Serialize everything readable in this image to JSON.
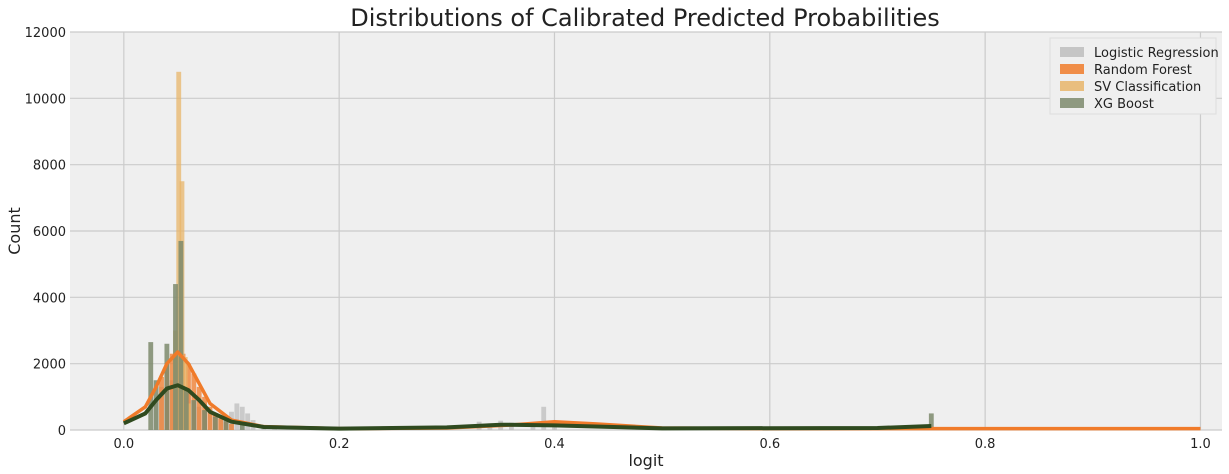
{
  "chart_data": {
    "type": "histogram",
    "title": "Distributions of Calibrated Predicted Probabilities",
    "xlabel": "logit",
    "ylabel": "Count",
    "xlim": [
      -0.05,
      1.02
    ],
    "ylim": [
      0,
      12000
    ],
    "xticks": [
      0.0,
      0.2,
      0.4,
      0.6,
      0.8,
      1.0
    ],
    "xtick_labels": [
      "0.0",
      "0.2",
      "0.4",
      "0.6",
      "0.8",
      "1.0"
    ],
    "yticks": [
      0,
      2000,
      4000,
      6000,
      8000,
      10000,
      12000
    ],
    "ytick_labels": [
      "0",
      "2000",
      "4000",
      "6000",
      "8000",
      "10000",
      "12000"
    ],
    "grid": true,
    "legend_position": "top-right",
    "series": [
      {
        "name": "Logistic Regression",
        "color": "#bdbdbd",
        "bars": [
          {
            "x": 0.03,
            "y": 900
          },
          {
            "x": 0.035,
            "y": 1300
          },
          {
            "x": 0.04,
            "y": 1500
          },
          {
            "x": 0.045,
            "y": 1500
          },
          {
            "x": 0.05,
            "y": 1400
          },
          {
            "x": 0.055,
            "y": 1300
          },
          {
            "x": 0.06,
            "y": 1100
          },
          {
            "x": 0.065,
            "y": 900
          },
          {
            "x": 0.07,
            "y": 700
          },
          {
            "x": 0.075,
            "y": 600
          },
          {
            "x": 0.08,
            "y": 500
          },
          {
            "x": 0.085,
            "y": 450
          },
          {
            "x": 0.09,
            "y": 400
          },
          {
            "x": 0.095,
            "y": 400
          },
          {
            "x": 0.1,
            "y": 550
          },
          {
            "x": 0.105,
            "y": 800
          },
          {
            "x": 0.11,
            "y": 700
          },
          {
            "x": 0.115,
            "y": 500
          },
          {
            "x": 0.12,
            "y": 300
          },
          {
            "x": 0.13,
            "y": 150
          },
          {
            "x": 0.14,
            "y": 80
          },
          {
            "x": 0.33,
            "y": 250
          },
          {
            "x": 0.34,
            "y": 200
          },
          {
            "x": 0.35,
            "y": 280
          },
          {
            "x": 0.36,
            "y": 220
          },
          {
            "x": 0.38,
            "y": 180
          },
          {
            "x": 0.39,
            "y": 700
          },
          {
            "x": 0.4,
            "y": 150
          }
        ]
      },
      {
        "name": "Random Forest",
        "color": "#f07b2a",
        "bars": [
          {
            "x": 0.035,
            "y": 1600
          },
          {
            "x": 0.04,
            "y": 2000
          },
          {
            "x": 0.045,
            "y": 2300
          },
          {
            "x": 0.05,
            "y": 2400
          },
          {
            "x": 0.055,
            "y": 2300
          },
          {
            "x": 0.06,
            "y": 2000
          },
          {
            "x": 0.065,
            "y": 1700
          },
          {
            "x": 0.07,
            "y": 1300
          },
          {
            "x": 0.075,
            "y": 1000
          },
          {
            "x": 0.08,
            "y": 700
          },
          {
            "x": 0.085,
            "y": 500
          },
          {
            "x": 0.09,
            "y": 350
          },
          {
            "x": 0.095,
            "y": 250
          },
          {
            "x": 0.1,
            "y": 180
          }
        ],
        "kde": [
          {
            "x": 0.0,
            "y": 250
          },
          {
            "x": 0.02,
            "y": 700
          },
          {
            "x": 0.03,
            "y": 1300
          },
          {
            "x": 0.04,
            "y": 2000
          },
          {
            "x": 0.05,
            "y": 2350
          },
          {
            "x": 0.06,
            "y": 2000
          },
          {
            "x": 0.07,
            "y": 1400
          },
          {
            "x": 0.08,
            "y": 800
          },
          {
            "x": 0.1,
            "y": 300
          },
          {
            "x": 0.13,
            "y": 100
          },
          {
            "x": 0.2,
            "y": 40
          },
          {
            "x": 0.3,
            "y": 60
          },
          {
            "x": 0.36,
            "y": 150
          },
          {
            "x": 0.4,
            "y": 250
          },
          {
            "x": 0.44,
            "y": 180
          },
          {
            "x": 0.5,
            "y": 60
          },
          {
            "x": 0.6,
            "y": 40
          },
          {
            "x": 0.8,
            "y": 40
          },
          {
            "x": 1.0,
            "y": 40
          }
        ]
      },
      {
        "name": "SV Classification",
        "color": "#e8b56a",
        "bars": [
          {
            "x": 0.048,
            "y": 3000
          },
          {
            "x": 0.051,
            "y": 10800
          },
          {
            "x": 0.054,
            "y": 7500
          },
          {
            "x": 0.057,
            "y": 2200
          },
          {
            "x": 0.06,
            "y": 800
          }
        ]
      },
      {
        "name": "XG Boost",
        "color": "#7d8a6c",
        "bars": [
          {
            "x": 0.025,
            "y": 2650
          },
          {
            "x": 0.03,
            "y": 1500
          },
          {
            "x": 0.04,
            "y": 2600
          },
          {
            "x": 0.048,
            "y": 4400
          },
          {
            "x": 0.053,
            "y": 5700
          },
          {
            "x": 0.058,
            "y": 1200
          },
          {
            "x": 0.065,
            "y": 900
          },
          {
            "x": 0.075,
            "y": 600
          },
          {
            "x": 0.085,
            "y": 400
          },
          {
            "x": 0.095,
            "y": 300
          },
          {
            "x": 0.11,
            "y": 200
          },
          {
            "x": 0.75,
            "y": 500
          }
        ],
        "kde": [
          {
            "x": 0.0,
            "y": 200
          },
          {
            "x": 0.02,
            "y": 500
          },
          {
            "x": 0.03,
            "y": 900
          },
          {
            "x": 0.04,
            "y": 1250
          },
          {
            "x": 0.05,
            "y": 1350
          },
          {
            "x": 0.06,
            "y": 1200
          },
          {
            "x": 0.07,
            "y": 900
          },
          {
            "x": 0.08,
            "y": 550
          },
          {
            "x": 0.1,
            "y": 250
          },
          {
            "x": 0.13,
            "y": 90
          },
          {
            "x": 0.2,
            "y": 40
          },
          {
            "x": 0.3,
            "y": 80
          },
          {
            "x": 0.35,
            "y": 160
          },
          {
            "x": 0.4,
            "y": 140
          },
          {
            "x": 0.5,
            "y": 50
          },
          {
            "x": 0.7,
            "y": 60
          },
          {
            "x": 0.75,
            "y": 120
          }
        ]
      }
    ]
  }
}
